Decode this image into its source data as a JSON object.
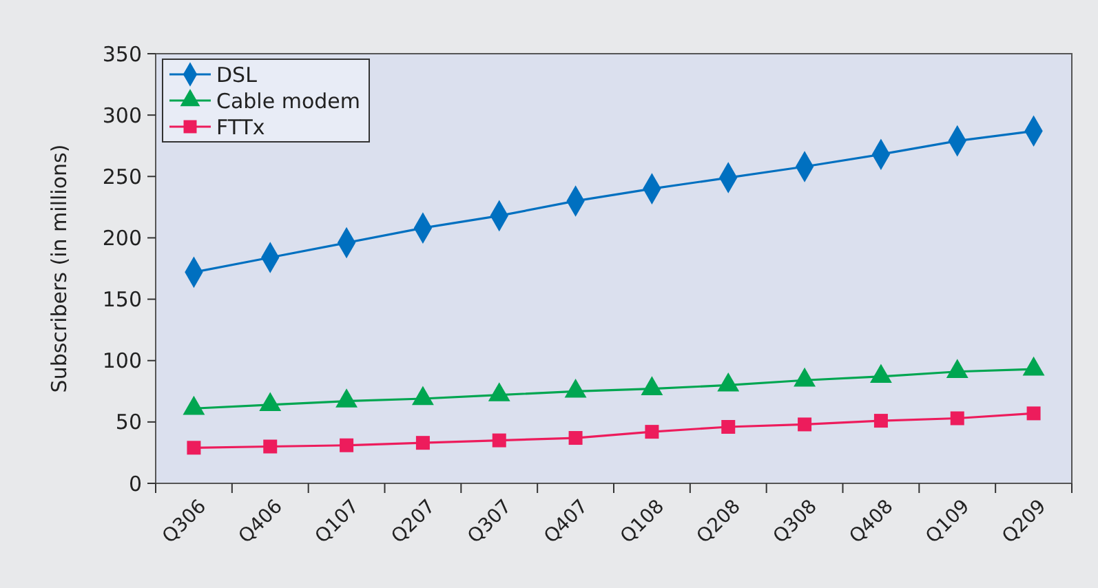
{
  "chart_data": {
    "type": "line",
    "ylabel": "Subscribers (in millions)",
    "categories": [
      "Q306",
      "Q406",
      "Q107",
      "Q207",
      "Q307",
      "Q407",
      "Q108",
      "Q208",
      "Q308",
      "Q408",
      "Q109",
      "Q209"
    ],
    "series": [
      {
        "name": "DSL",
        "color": "#0070c0",
        "marker": "diamond",
        "values": [
          172,
          184,
          196,
          208,
          218,
          230,
          240,
          249,
          258,
          268,
          279,
          287
        ]
      },
      {
        "name": "Cable modem",
        "color": "#00a651",
        "marker": "triangle",
        "values": [
          61,
          64,
          67,
          69,
          72,
          75,
          77,
          80,
          84,
          87,
          91,
          93
        ]
      },
      {
        "name": "FTTx",
        "color": "#ed1c5c",
        "marker": "square",
        "values": [
          29,
          30,
          31,
          33,
          35,
          37,
          42,
          46,
          48,
          51,
          53,
          57
        ]
      }
    ],
    "ylim": [
      0,
      350
    ],
    "yticks": [
      0,
      50,
      100,
      150,
      200,
      250,
      300,
      350
    ],
    "grid": false,
    "legend": "top left"
  }
}
